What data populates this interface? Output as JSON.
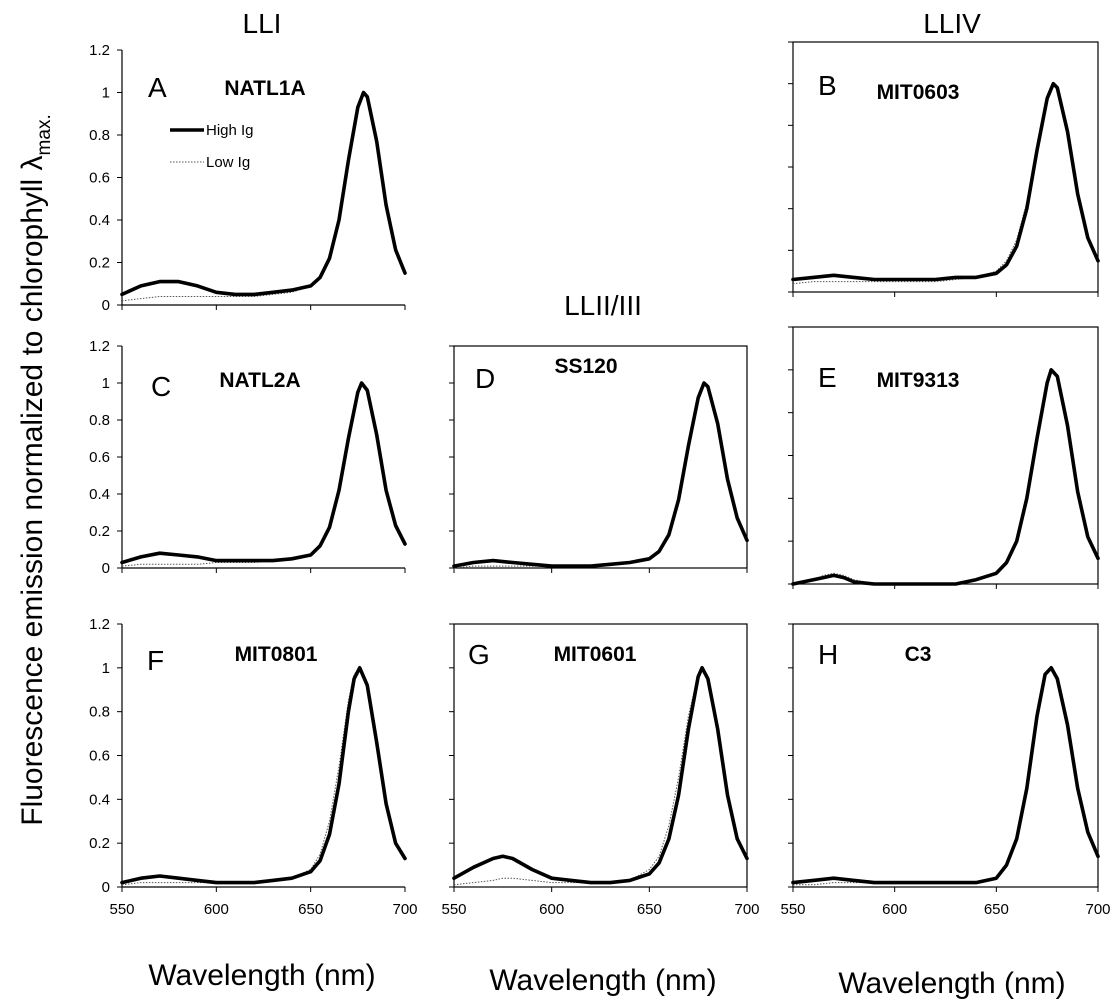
{
  "figure": {
    "ylabel_prefix": "Fluorescence emission normalized to chlorophyll ",
    "ylabel_lambda": "λ",
    "ylabel_sub": "max.",
    "xlabels": [
      "Wavelength (nm)",
      "Wavelength (nm)",
      "Wavelength (nm)"
    ],
    "clade_labels": {
      "left": "LLI",
      "middle": "LLII/III",
      "right": "LLIV"
    },
    "legend": {
      "high": "High Ig",
      "low": "Low Ig"
    }
  },
  "chart_data": [
    {
      "type": "line",
      "panel": "A",
      "strain": "NATL1A",
      "clade": "LLI",
      "xlim": [
        550,
        700
      ],
      "ylim": [
        0,
        1.2
      ],
      "x_ticks": [
        550,
        600,
        650,
        700
      ],
      "y_ticks": [
        0,
        0.2,
        0.4,
        0.6,
        0.8,
        1.0,
        1.2
      ],
      "series": [
        {
          "name": "High Ig",
          "x": [
            550,
            560,
            570,
            580,
            590,
            600,
            610,
            620,
            630,
            640,
            650,
            655,
            660,
            665,
            670,
            675,
            678,
            680,
            685,
            690,
            695,
            700
          ],
          "y": [
            0.05,
            0.09,
            0.11,
            0.11,
            0.09,
            0.06,
            0.05,
            0.05,
            0.06,
            0.07,
            0.09,
            0.13,
            0.22,
            0.4,
            0.68,
            0.93,
            1.0,
            0.98,
            0.77,
            0.47,
            0.26,
            0.15
          ]
        },
        {
          "name": "Low Ig",
          "x": [
            550,
            560,
            570,
            580,
            590,
            600,
            610,
            620,
            630,
            640,
            650,
            655,
            660,
            665,
            670,
            675,
            678,
            680,
            685,
            690,
            695,
            700
          ],
          "y": [
            0.02,
            0.03,
            0.04,
            0.04,
            0.04,
            0.04,
            0.04,
            0.04,
            0.05,
            0.06,
            0.09,
            0.13,
            0.22,
            0.4,
            0.68,
            0.93,
            1.0,
            0.98,
            0.77,
            0.47,
            0.26,
            0.15
          ]
        }
      ]
    },
    {
      "type": "line",
      "panel": "B",
      "strain": "MIT0603",
      "clade": "LLIV",
      "xlim": [
        550,
        700
      ],
      "ylim": [
        0,
        1.2
      ],
      "x_ticks": [
        550,
        600,
        650,
        700
      ],
      "y_ticks": [
        0,
        0.2,
        0.4,
        0.6,
        0.8,
        1.0,
        1.2
      ],
      "series": [
        {
          "name": "High Ig",
          "x": [
            550,
            560,
            570,
            580,
            590,
            600,
            610,
            620,
            630,
            640,
            650,
            655,
            660,
            665,
            670,
            675,
            678,
            680,
            685,
            690,
            695,
            700
          ],
          "y": [
            0.06,
            0.07,
            0.08,
            0.07,
            0.06,
            0.06,
            0.06,
            0.06,
            0.07,
            0.07,
            0.09,
            0.13,
            0.22,
            0.4,
            0.68,
            0.93,
            1.0,
            0.98,
            0.77,
            0.47,
            0.26,
            0.15
          ]
        },
        {
          "name": "Low Ig",
          "x": [
            550,
            560,
            570,
            580,
            590,
            600,
            610,
            620,
            630,
            640,
            650,
            655,
            660,
            665,
            670,
            675,
            678,
            680,
            685,
            690,
            695,
            700
          ],
          "y": [
            0.04,
            0.05,
            0.05,
            0.05,
            0.05,
            0.05,
            0.05,
            0.05,
            0.06,
            0.07,
            0.1,
            0.15,
            0.25,
            0.43,
            0.7,
            0.93,
            1.0,
            0.98,
            0.77,
            0.47,
            0.26,
            0.15
          ]
        }
      ]
    },
    {
      "type": "line",
      "panel": "C",
      "strain": "NATL2A",
      "clade": "LLI",
      "xlim": [
        550,
        700
      ],
      "ylim": [
        0,
        1.2
      ],
      "x_ticks": [
        550,
        600,
        650,
        700
      ],
      "y_ticks": [
        0,
        0.2,
        0.4,
        0.6,
        0.8,
        1.0,
        1.2
      ],
      "series": [
        {
          "name": "High Ig",
          "x": [
            550,
            560,
            570,
            580,
            590,
            600,
            610,
            620,
            630,
            640,
            650,
            655,
            660,
            665,
            670,
            675,
            677,
            680,
            685,
            690,
            695,
            700
          ],
          "y": [
            0.03,
            0.06,
            0.08,
            0.07,
            0.06,
            0.04,
            0.04,
            0.04,
            0.04,
            0.05,
            0.07,
            0.12,
            0.22,
            0.42,
            0.7,
            0.95,
            1.0,
            0.96,
            0.72,
            0.42,
            0.23,
            0.13
          ]
        },
        {
          "name": "Low Ig",
          "x": [
            550,
            560,
            570,
            580,
            590,
            600,
            610,
            620,
            630,
            640,
            650,
            655,
            660,
            665,
            670,
            675,
            677,
            680,
            685,
            690,
            695,
            700
          ],
          "y": [
            0.01,
            0.02,
            0.02,
            0.02,
            0.02,
            0.03,
            0.03,
            0.03,
            0.04,
            0.05,
            0.07,
            0.12,
            0.22,
            0.42,
            0.7,
            0.95,
            1.0,
            0.96,
            0.72,
            0.42,
            0.23,
            0.13
          ]
        }
      ]
    },
    {
      "type": "line",
      "panel": "D",
      "strain": "SS120",
      "clade": "LLII/III",
      "xlim": [
        550,
        700
      ],
      "ylim": [
        0,
        1.2
      ],
      "x_ticks": [
        550,
        600,
        650,
        700
      ],
      "y_ticks": [
        0,
        0.2,
        0.4,
        0.6,
        0.8,
        1.0,
        1.2
      ],
      "series": [
        {
          "name": "High Ig",
          "x": [
            550,
            560,
            570,
            580,
            590,
            600,
            610,
            620,
            630,
            640,
            650,
            655,
            660,
            665,
            670,
            675,
            678,
            680,
            685,
            690,
            695,
            700
          ],
          "y": [
            0.01,
            0.03,
            0.04,
            0.03,
            0.02,
            0.01,
            0.01,
            0.01,
            0.02,
            0.03,
            0.05,
            0.09,
            0.18,
            0.37,
            0.66,
            0.92,
            1.0,
            0.98,
            0.78,
            0.48,
            0.27,
            0.15
          ]
        },
        {
          "name": "Low Ig",
          "x": [
            550,
            560,
            570,
            580,
            590,
            600,
            610,
            620,
            630,
            640,
            650,
            655,
            660,
            665,
            670,
            675,
            678,
            680,
            685,
            690,
            695,
            700
          ],
          "y": [
            0.0,
            0.01,
            0.01,
            0.01,
            0.01,
            0.01,
            0.01,
            0.01,
            0.02,
            0.03,
            0.05,
            0.09,
            0.18,
            0.37,
            0.66,
            0.92,
            1.0,
            0.98,
            0.78,
            0.48,
            0.27,
            0.15
          ]
        }
      ]
    },
    {
      "type": "line",
      "panel": "E",
      "strain": "MIT9313",
      "clade": "LLIV",
      "xlim": [
        550,
        700
      ],
      "ylim": [
        0,
        1.2
      ],
      "x_ticks": [
        550,
        600,
        650,
        700
      ],
      "y_ticks": [
        0,
        0.2,
        0.4,
        0.6,
        0.8,
        1.0,
        1.2
      ],
      "series": [
        {
          "name": "High Ig",
          "x": [
            550,
            555,
            560,
            565,
            570,
            575,
            580,
            590,
            600,
            610,
            620,
            630,
            640,
            650,
            655,
            660,
            665,
            670,
            675,
            677,
            680,
            685,
            690,
            695,
            700
          ],
          "y": [
            0.0,
            0.01,
            0.02,
            0.03,
            0.04,
            0.03,
            0.01,
            0.0,
            0.0,
            0.0,
            0.0,
            0.0,
            0.02,
            0.05,
            0.1,
            0.2,
            0.4,
            0.68,
            0.94,
            1.0,
            0.97,
            0.74,
            0.43,
            0.22,
            0.12
          ]
        },
        {
          "name": "Low Ig",
          "x": [
            550,
            555,
            560,
            565,
            570,
            575,
            580,
            590,
            600,
            610,
            620,
            630,
            640,
            650,
            655,
            660,
            665,
            670,
            675,
            677,
            680,
            685,
            690,
            695,
            700
          ],
          "y": [
            0.0,
            0.01,
            0.02,
            0.04,
            0.05,
            0.04,
            0.02,
            0.0,
            0.0,
            0.0,
            0.0,
            0.0,
            0.02,
            0.05,
            0.1,
            0.2,
            0.4,
            0.68,
            0.94,
            1.0,
            0.97,
            0.74,
            0.43,
            0.22,
            0.12
          ]
        }
      ]
    },
    {
      "type": "line",
      "panel": "F",
      "strain": "MIT0801",
      "clade": "LLI",
      "xlim": [
        550,
        700
      ],
      "ylim": [
        0,
        1.2
      ],
      "x_ticks": [
        550,
        600,
        650,
        700
      ],
      "y_ticks": [
        0,
        0.2,
        0.4,
        0.6,
        0.8,
        1.0,
        1.2
      ],
      "series": [
        {
          "name": "High Ig",
          "x": [
            550,
            560,
            570,
            580,
            590,
            600,
            610,
            620,
            630,
            640,
            650,
            655,
            660,
            665,
            670,
            673,
            676,
            680,
            685,
            690,
            695,
            700
          ],
          "y": [
            0.02,
            0.04,
            0.05,
            0.04,
            0.03,
            0.02,
            0.02,
            0.02,
            0.03,
            0.04,
            0.07,
            0.12,
            0.24,
            0.47,
            0.8,
            0.95,
            1.0,
            0.92,
            0.66,
            0.38,
            0.2,
            0.13
          ]
        },
        {
          "name": "Low Ig",
          "x": [
            550,
            560,
            570,
            580,
            590,
            600,
            610,
            620,
            630,
            640,
            650,
            655,
            660,
            665,
            670,
            673,
            676,
            680,
            685,
            690,
            695,
            700
          ],
          "y": [
            0.01,
            0.02,
            0.02,
            0.02,
            0.02,
            0.02,
            0.02,
            0.02,
            0.03,
            0.04,
            0.08,
            0.15,
            0.3,
            0.55,
            0.85,
            0.97,
            1.0,
            0.92,
            0.66,
            0.38,
            0.2,
            0.13
          ]
        }
      ]
    },
    {
      "type": "line",
      "panel": "G",
      "strain": "MIT0601",
      "clade": "LLII/III",
      "xlim": [
        550,
        700
      ],
      "ylim": [
        0,
        1.2
      ],
      "x_ticks": [
        550,
        600,
        650,
        700
      ],
      "y_ticks": [
        0,
        0.2,
        0.4,
        0.6,
        0.8,
        1.0,
        1.2
      ],
      "series": [
        {
          "name": "High Ig",
          "x": [
            550,
            560,
            570,
            575,
            580,
            590,
            600,
            610,
            620,
            630,
            640,
            650,
            655,
            660,
            665,
            670,
            675,
            677,
            680,
            685,
            690,
            695,
            700
          ],
          "y": [
            0.04,
            0.09,
            0.13,
            0.14,
            0.13,
            0.08,
            0.04,
            0.03,
            0.02,
            0.02,
            0.03,
            0.06,
            0.11,
            0.22,
            0.42,
            0.72,
            0.96,
            1.0,
            0.95,
            0.72,
            0.42,
            0.22,
            0.13
          ]
        },
        {
          "name": "Low Ig",
          "x": [
            550,
            560,
            570,
            575,
            580,
            590,
            600,
            610,
            620,
            630,
            640,
            650,
            655,
            660,
            665,
            670,
            675,
            677,
            680,
            685,
            690,
            695,
            700
          ],
          "y": [
            0.01,
            0.02,
            0.03,
            0.04,
            0.04,
            0.03,
            0.02,
            0.02,
            0.02,
            0.02,
            0.03,
            0.08,
            0.14,
            0.28,
            0.5,
            0.78,
            0.97,
            1.0,
            0.95,
            0.72,
            0.42,
            0.22,
            0.13
          ]
        }
      ]
    },
    {
      "type": "line",
      "panel": "H",
      "strain": "C3",
      "clade": "LLIV",
      "xlim": [
        550,
        700
      ],
      "ylim": [
        0,
        1.2
      ],
      "x_ticks": [
        550,
        600,
        650,
        700
      ],
      "y_ticks": [
        0,
        0.2,
        0.4,
        0.6,
        0.8,
        1.0,
        1.2
      ],
      "series": [
        {
          "name": "High Ig",
          "x": [
            550,
            560,
            570,
            580,
            590,
            600,
            610,
            620,
            630,
            640,
            650,
            655,
            660,
            665,
            670,
            674,
            677,
            680,
            685,
            690,
            695,
            700
          ],
          "y": [
            0.02,
            0.03,
            0.04,
            0.03,
            0.02,
            0.02,
            0.02,
            0.02,
            0.02,
            0.02,
            0.04,
            0.1,
            0.22,
            0.45,
            0.78,
            0.97,
            1.0,
            0.95,
            0.74,
            0.45,
            0.25,
            0.14
          ]
        },
        {
          "name": "Low Ig",
          "x": [
            550,
            560,
            570,
            580,
            590,
            600,
            610,
            620,
            630,
            640,
            650,
            655,
            660,
            665,
            670,
            674,
            677,
            680,
            685,
            690,
            695,
            700
          ],
          "y": [
            0.01,
            0.01,
            0.02,
            0.02,
            0.02,
            0.02,
            0.02,
            0.02,
            0.02,
            0.02,
            0.04,
            0.1,
            0.22,
            0.45,
            0.78,
            0.97,
            1.0,
            0.95,
            0.74,
            0.45,
            0.25,
            0.14
          ]
        }
      ]
    }
  ]
}
